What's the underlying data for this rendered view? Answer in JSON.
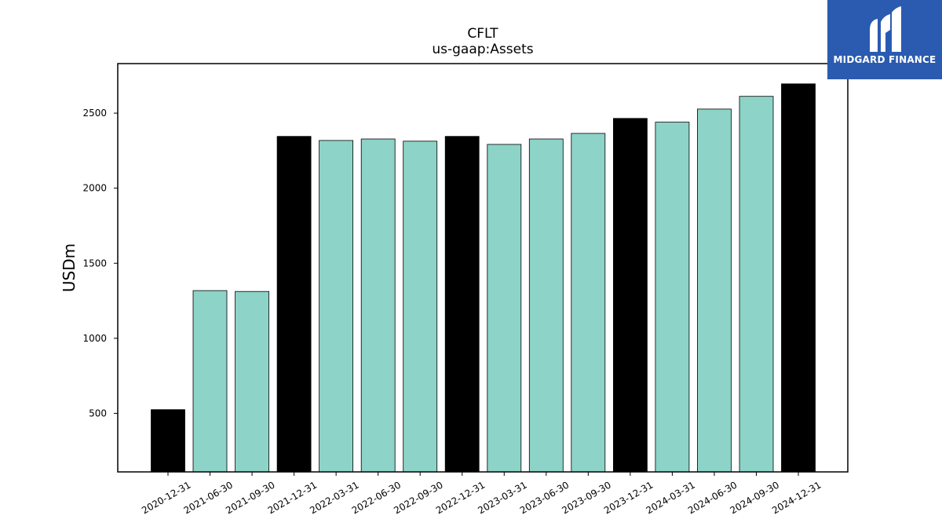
{
  "logo": {
    "text": "MIDGARD FINANCE"
  },
  "colors": {
    "annual": "#000000",
    "quarterly": "#8dd3c7",
    "frame": "#000000",
    "logo_bg": "#2a5bb0"
  },
  "chart_data": {
    "type": "bar",
    "title": "CFLT",
    "subtitle": "us-gaap:Assets",
    "xlabel": "",
    "ylabel": "USDm",
    "ylim": [
      110,
      2830
    ],
    "yticks": [
      500,
      1000,
      1500,
      2000,
      2500
    ],
    "grid": false,
    "categories": [
      "2020-12-31",
      "2021-06-30",
      "2021-09-30",
      "2021-12-31",
      "2022-03-31",
      "2022-06-30",
      "2022-09-30",
      "2022-12-31",
      "2023-03-31",
      "2023-06-30",
      "2023-09-30",
      "2023-12-31",
      "2024-03-31",
      "2024-06-30",
      "2024-09-30",
      "2024-12-31"
    ],
    "values": [
      525,
      1318,
      1312,
      2345,
      2318,
      2328,
      2313,
      2345,
      2292,
      2328,
      2365,
      2465,
      2440,
      2527,
      2612,
      2695
    ],
    "bar_colors": [
      "#000000",
      "#8dd3c7",
      "#8dd3c7",
      "#000000",
      "#8dd3c7",
      "#8dd3c7",
      "#8dd3c7",
      "#000000",
      "#8dd3c7",
      "#8dd3c7",
      "#8dd3c7",
      "#000000",
      "#8dd3c7",
      "#8dd3c7",
      "#8dd3c7",
      "#000000"
    ]
  }
}
